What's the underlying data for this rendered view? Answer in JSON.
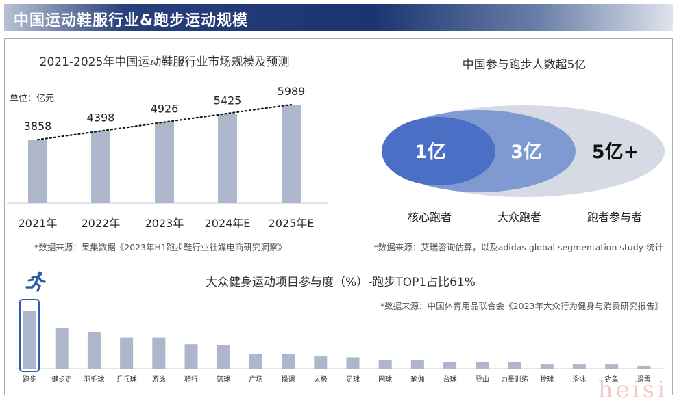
{
  "header": {
    "title": "中国运动鞋服行业&跑步运动规模"
  },
  "market_chart": {
    "title": "2021-2025年中国运动鞋服行业市场规模及预测",
    "unit": "单位：亿元",
    "source": "*数据来源：果集数据《2023年H1跑步鞋行业社媒电商研究洞察》"
  },
  "runners": {
    "title": "中国参与跑步人数超5亿",
    "core_value": "1亿",
    "mass_value": "3亿",
    "total_value": "5亿+",
    "core_label": "核心跑者",
    "mass_label": "大众跑者",
    "total_label": "跑者参与者",
    "source": "*数据来源：艾瑞咨询估算，以及adidas global segmentation study 统计"
  },
  "participation_chart": {
    "title": "大众健身运动项目参与度（%）-跑步TOP1占比61%",
    "source": "*数据来源：中国体育用品联合会《2023年大众行为健身与消费研究报告》"
  },
  "icons": {
    "runner": "running-person-icon"
  },
  "watermark": "heisi",
  "colors": {
    "bar": "#adb6cb",
    "core": "#4a6fc4",
    "mass": "#7e9ad1",
    "outer": "#d5dae5",
    "highlight": "#2f5ea8"
  },
  "chart_data": [
    {
      "type": "bar",
      "categories": [
        "2021年",
        "2022年",
        "2023年",
        "2024年E",
        "2025年E"
      ],
      "values": [
        3858,
        4398,
        4926,
        5425,
        5989
      ],
      "title": "2021-2025年中国运动鞋服行业市场规模及预测",
      "ylabel": "单位：亿元",
      "trendline": "dotted",
      "ylim": [
        0,
        6500
      ]
    },
    {
      "type": "bar",
      "categories": [
        "跑步",
        "健步走",
        "羽毛球",
        "乒乓球",
        "游泳",
        "骑行",
        "篮球",
        "广场",
        "操课",
        "太极",
        "足球",
        "网球",
        "瑜伽",
        "台球",
        "登山",
        "力量训练",
        "排球",
        "滑冰",
        "钓鱼",
        "滑雪"
      ],
      "values": [
        61,
        43,
        39,
        33,
        33,
        26,
        25,
        16,
        16,
        13,
        12,
        9,
        9,
        7,
        7,
        7,
        5,
        5,
        5,
        3
      ],
      "title": "大众健身运动项目参与度（%）-跑步TOP1占比61%",
      "highlight": "跑步",
      "ylim": [
        0,
        70
      ]
    }
  ]
}
